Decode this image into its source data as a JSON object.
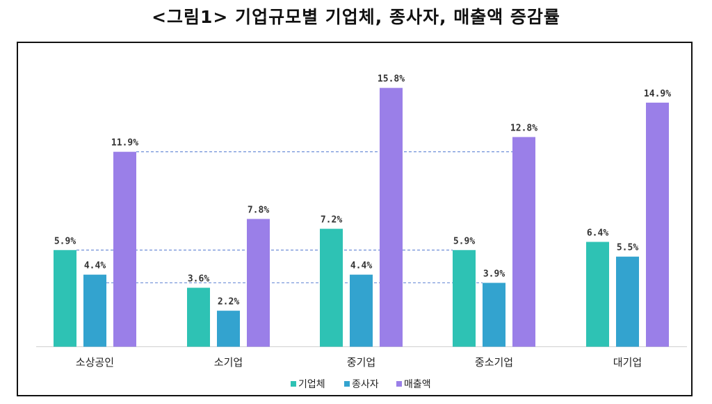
{
  "page": {
    "title": "<그림1> 기업규모별 기업체, 종사자, 매출액 증감률"
  },
  "colors": {
    "series": [
      "#2ec2b4",
      "#33a3cf",
      "#9a7fe8"
    ],
    "reference_line": "#6f8fd8",
    "axis": "#d0d0d0"
  },
  "chart_data": {
    "type": "bar",
    "categories": [
      "소상공인",
      "소기업",
      "중기업",
      "중소기업",
      "대기업"
    ],
    "series": [
      {
        "name": "기업체",
        "values": [
          5.9,
          3.6,
          7.2,
          5.9,
          6.4
        ],
        "labels": [
          "5.9%",
          "3.6%",
          "7.2%",
          "5.9%",
          "6.4%"
        ]
      },
      {
        "name": "종사자",
        "values": [
          4.4,
          2.2,
          4.4,
          3.9,
          5.5
        ],
        "labels": [
          "4.4%",
          "2.2%",
          "4.4%",
          "3.9%",
          "5.5%"
        ]
      },
      {
        "name": "매출액",
        "values": [
          11.9,
          7.8,
          15.8,
          12.8,
          14.9
        ],
        "labels": [
          "11.9%",
          "7.8%",
          "15.8%",
          "12.8%",
          "14.9%"
        ]
      }
    ],
    "ylim": [
      0,
      17
    ],
    "grid": false,
    "legend": "bottom-center",
    "reference_lines": [
      {
        "value": 11.9,
        "style": "dashed"
      },
      {
        "value": 5.9,
        "style": "dashed"
      },
      {
        "value": 3.9,
        "style": "dashed"
      }
    ]
  }
}
